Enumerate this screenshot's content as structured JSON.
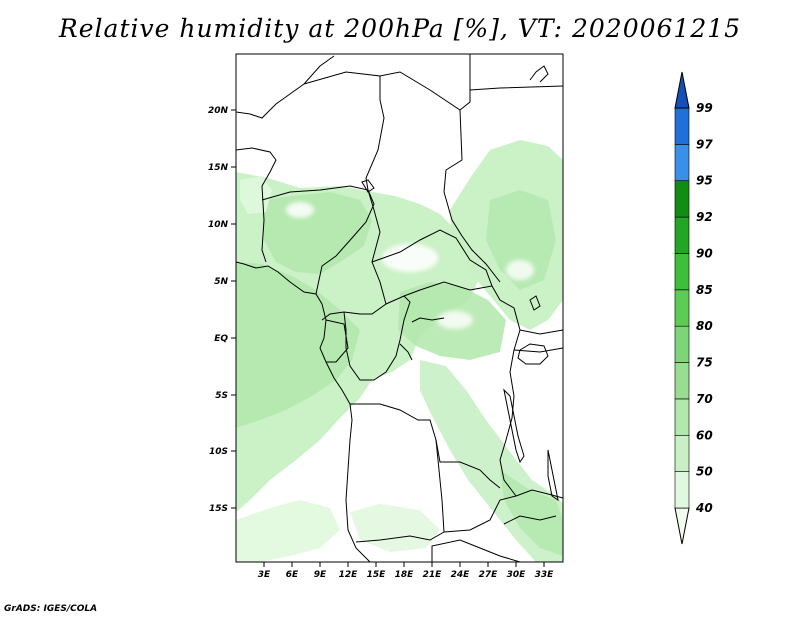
{
  "title": "Relative humidity at 200hPa [%], VT: 2020061215",
  "credit": "GrADS: IGES/COLA",
  "map": {
    "lat_ticks": [
      "20N",
      "15N",
      "10N",
      "5N",
      "EQ",
      "5S",
      "10S",
      "15S"
    ],
    "lon_ticks": [
      "3E",
      "6E",
      "9E",
      "12E",
      "15E",
      "18E",
      "21E",
      "24E",
      "27E",
      "30E",
      "33E"
    ]
  },
  "colorbar": {
    "levels": [
      "40",
      "50",
      "60",
      "70",
      "75",
      "80",
      "85",
      "90",
      "92",
      "95",
      "97",
      "99"
    ],
    "colors": [
      "#effcef",
      "#e0f8dd",
      "#c8f0c4",
      "#b2e8ac",
      "#99dd92",
      "#7dd578",
      "#5ccc55",
      "#3fbe3b",
      "#23a623",
      "#138c13",
      "#3a8fe8",
      "#2070d8",
      "#1450b8"
    ]
  }
}
